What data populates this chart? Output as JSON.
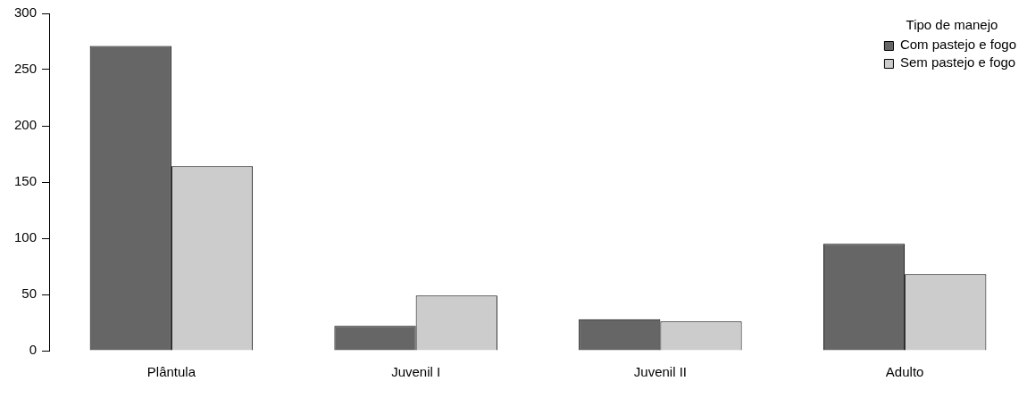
{
  "chart_data": {
    "type": "bar",
    "categories": [
      "Plântula",
      "Juvenil I",
      "Juvenil II",
      "Adulto"
    ],
    "series": [
      {
        "name": "Com pastejo e fogo",
        "color": "#666666",
        "values": [
          271,
          22,
          28,
          95
        ]
      },
      {
        "name": "Sem pastejo e fogo",
        "color": "#cccccc",
        "values": [
          164,
          49,
          26,
          68
        ]
      }
    ],
    "legend_title": "Tipo de manejo",
    "legend": "top right",
    "ylim": [
      0,
      300
    ],
    "yticks": [
      0,
      50,
      100,
      150,
      200,
      250,
      300
    ],
    "grid": false
  }
}
